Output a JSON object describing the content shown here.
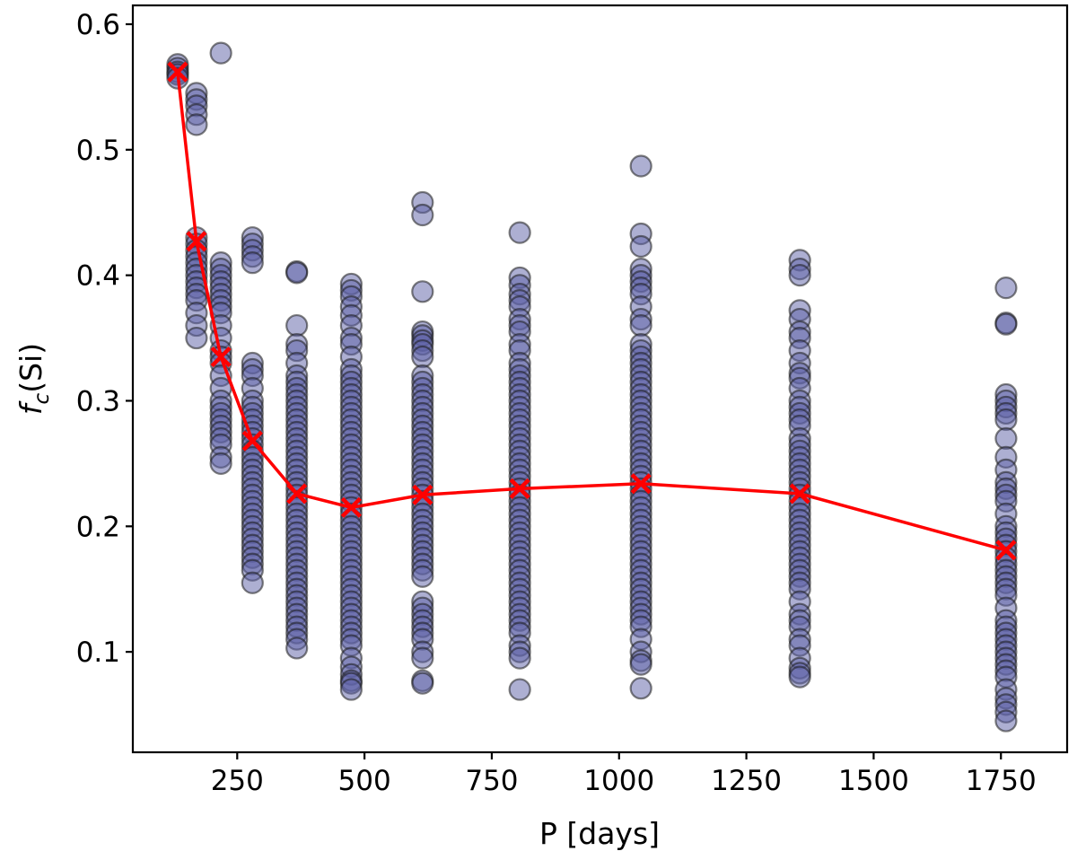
{
  "chart_data": {
    "type": "scatter",
    "xlabel": "P [days]",
    "ylabel_main": "f",
    "ylabel_sub": "c",
    "ylabel_tail": "(Si)",
    "xlim": [
      45,
      1880
    ],
    "ylim": [
      0.02,
      0.615
    ],
    "xticks": [
      250,
      500,
      750,
      1000,
      1250,
      1500,
      1750
    ],
    "yticks": [
      0.1,
      0.2,
      0.3,
      0.4,
      0.5,
      0.6
    ],
    "grid": false,
    "colors": {
      "points": "#5b5fa6",
      "median": "#ff0000"
    },
    "series": [
      {
        "type": "scatter",
        "groups": [
          {
            "x": 133,
            "y": [
              0.568,
              0.565,
              0.562,
              0.56,
              0.557
            ]
          },
          {
            "x": 170,
            "y": [
              0.545,
              0.54,
              0.535,
              0.528,
              0.52,
              0.43,
              0.425,
              0.42,
              0.415,
              0.41,
              0.405,
              0.4,
              0.395,
              0.39,
              0.385,
              0.38,
              0.37,
              0.36,
              0.35
            ]
          },
          {
            "x": 218,
            "y": [
              0.577,
              0.41,
              0.405,
              0.4,
              0.395,
              0.39,
              0.385,
              0.38,
              0.375,
              0.37,
              0.36,
              0.35,
              0.34,
              0.335,
              0.33,
              0.32,
              0.31,
              0.3,
              0.295,
              0.29,
              0.285,
              0.28,
              0.275,
              0.27,
              0.265,
              0.255,
              0.25
            ]
          },
          {
            "x": 280,
            "y": [
              0.43,
              0.425,
              0.42,
              0.415,
              0.41,
              0.33,
              0.325,
              0.32,
              0.31,
              0.3,
              0.295,
              0.29,
              0.285,
              0.28,
              0.275,
              0.27,
              0.265,
              0.26,
              0.255,
              0.25,
              0.245,
              0.24,
              0.235,
              0.23,
              0.225,
              0.22,
              0.215,
              0.21,
              0.205,
              0.2,
              0.195,
              0.19,
              0.185,
              0.18,
              0.175,
              0.17,
              0.165,
              0.155
            ]
          },
          {
            "x": 367,
            "y": [
              0.403,
              0.402,
              0.36,
              0.345,
              0.34,
              0.33,
              0.32,
              0.315,
              0.31,
              0.305,
              0.3,
              0.295,
              0.29,
              0.285,
              0.28,
              0.275,
              0.27,
              0.265,
              0.26,
              0.255,
              0.25,
              0.245,
              0.24,
              0.235,
              0.23,
              0.225,
              0.22,
              0.215,
              0.21,
              0.205,
              0.2,
              0.195,
              0.19,
              0.185,
              0.18,
              0.175,
              0.17,
              0.165,
              0.16,
              0.155,
              0.15,
              0.145,
              0.14,
              0.135,
              0.13,
              0.125,
              0.12,
              0.115,
              0.11,
              0.103
            ]
          },
          {
            "x": 474,
            "y": [
              0.393,
              0.388,
              0.383,
              0.375,
              0.368,
              0.36,
              0.35,
              0.345,
              0.335,
              0.325,
              0.32,
              0.315,
              0.31,
              0.305,
              0.3,
              0.295,
              0.29,
              0.285,
              0.28,
              0.275,
              0.27,
              0.265,
              0.26,
              0.255,
              0.25,
              0.245,
              0.24,
              0.235,
              0.23,
              0.225,
              0.22,
              0.215,
              0.21,
              0.205,
              0.2,
              0.195,
              0.19,
              0.185,
              0.18,
              0.175,
              0.17,
              0.165,
              0.16,
              0.155,
              0.15,
              0.145,
              0.14,
              0.135,
              0.13,
              0.125,
              0.12,
              0.115,
              0.11,
              0.105,
              0.095,
              0.088,
              0.082,
              0.077,
              0.075,
              0.07
            ]
          },
          {
            "x": 614,
            "y": [
              0.458,
              0.448,
              0.387,
              0.355,
              0.352,
              0.348,
              0.345,
              0.34,
              0.335,
              0.32,
              0.315,
              0.31,
              0.305,
              0.3,
              0.295,
              0.29,
              0.285,
              0.28,
              0.275,
              0.27,
              0.265,
              0.26,
              0.255,
              0.25,
              0.245,
              0.24,
              0.235,
              0.23,
              0.225,
              0.22,
              0.215,
              0.21,
              0.205,
              0.2,
              0.195,
              0.19,
              0.185,
              0.18,
              0.175,
              0.17,
              0.165,
              0.16,
              0.14,
              0.135,
              0.13,
              0.125,
              0.12,
              0.115,
              0.11,
              0.1,
              0.095,
              0.077,
              0.075
            ]
          },
          {
            "x": 805,
            "y": [
              0.434,
              0.398,
              0.392,
              0.385,
              0.38,
              0.375,
              0.365,
              0.36,
              0.355,
              0.345,
              0.34,
              0.33,
              0.325,
              0.32,
              0.315,
              0.31,
              0.305,
              0.3,
              0.295,
              0.29,
              0.285,
              0.28,
              0.275,
              0.27,
              0.265,
              0.26,
              0.255,
              0.25,
              0.245,
              0.24,
              0.235,
              0.23,
              0.225,
              0.22,
              0.215,
              0.21,
              0.205,
              0.2,
              0.195,
              0.19,
              0.185,
              0.18,
              0.175,
              0.17,
              0.165,
              0.16,
              0.155,
              0.15,
              0.145,
              0.14,
              0.135,
              0.13,
              0.125,
              0.12,
              0.115,
              0.105,
              0.1,
              0.095,
              0.07
            ]
          },
          {
            "x": 1043,
            "y": [
              0.487,
              0.433,
              0.423,
              0.405,
              0.4,
              0.395,
              0.39,
              0.385,
              0.375,
              0.365,
              0.36,
              0.345,
              0.34,
              0.335,
              0.33,
              0.325,
              0.32,
              0.315,
              0.31,
              0.305,
              0.3,
              0.295,
              0.29,
              0.285,
              0.28,
              0.275,
              0.27,
              0.265,
              0.26,
              0.255,
              0.25,
              0.245,
              0.24,
              0.235,
              0.23,
              0.225,
              0.22,
              0.215,
              0.21,
              0.205,
              0.2,
              0.195,
              0.19,
              0.185,
              0.18,
              0.175,
              0.17,
              0.165,
              0.16,
              0.155,
              0.15,
              0.145,
              0.14,
              0.135,
              0.13,
              0.125,
              0.12,
              0.11,
              0.1,
              0.093,
              0.09,
              0.071
            ]
          },
          {
            "x": 1355,
            "y": [
              0.412,
              0.405,
              0.4,
              0.372,
              0.365,
              0.355,
              0.35,
              0.34,
              0.33,
              0.322,
              0.318,
              0.31,
              0.3,
              0.295,
              0.29,
              0.285,
              0.28,
              0.27,
              0.265,
              0.26,
              0.255,
              0.25,
              0.245,
              0.24,
              0.235,
              0.23,
              0.225,
              0.22,
              0.215,
              0.21,
              0.205,
              0.2,
              0.195,
              0.19,
              0.185,
              0.18,
              0.175,
              0.17,
              0.165,
              0.16,
              0.155,
              0.15,
              0.14,
              0.13,
              0.125,
              0.12,
              0.11,
              0.105,
              0.095,
              0.087,
              0.083,
              0.08
            ]
          },
          {
            "x": 1760,
            "y": [
              0.39,
              0.362,
              0.361,
              0.305,
              0.3,
              0.295,
              0.29,
              0.285,
              0.27,
              0.255,
              0.245,
              0.235,
              0.23,
              0.225,
              0.22,
              0.21,
              0.2,
              0.195,
              0.19,
              0.185,
              0.18,
              0.175,
              0.17,
              0.165,
              0.16,
              0.155,
              0.15,
              0.145,
              0.135,
              0.125,
              0.12,
              0.115,
              0.11,
              0.105,
              0.1,
              0.095,
              0.09,
              0.085,
              0.08,
              0.07,
              0.063,
              0.058,
              0.052,
              0.045
            ]
          }
        ]
      },
      {
        "type": "line",
        "marker": "x",
        "x": [
          133,
          170,
          218,
          280,
          367,
          474,
          614,
          805,
          1043,
          1355,
          1760
        ],
        "y": [
          0.562,
          0.427,
          0.335,
          0.268,
          0.226,
          0.215,
          0.225,
          0.23,
          0.234,
          0.226,
          0.181
        ]
      }
    ]
  }
}
